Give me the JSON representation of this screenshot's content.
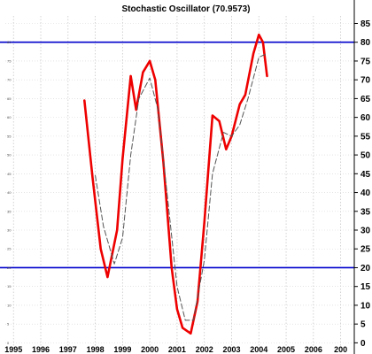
{
  "chart_data": {
    "type": "line",
    "title": "Stochastic Oscillator (70.9573)",
    "x_tick_labels": [
      "1995",
      "1996",
      "1997",
      "1998",
      "1999",
      "2000",
      "2001",
      "2002",
      "2003",
      "2004",
      "2005",
      "2006",
      "200"
    ],
    "y_tick_labels_right": [
      "85",
      "80",
      "75",
      "70",
      "65",
      "60",
      "55",
      "50",
      "45",
      "40",
      "35",
      "30",
      "25",
      "20",
      "15",
      "10",
      "5",
      "0"
    ],
    "y_tick_labels_left": [
      "80",
      "75",
      "70",
      "65",
      "60",
      "55",
      "50",
      "45",
      "40",
      "35",
      "30",
      "25",
      "20",
      "15",
      "10",
      "5",
      "0"
    ],
    "ylim": [
      -2.5,
      87
    ],
    "xlim": [
      1994.7,
      2007.5
    ],
    "grid": true,
    "horizontal_levels": [
      {
        "value": 80,
        "color": "#0000cc"
      },
      {
        "value": 20,
        "color": "#0000cc"
      }
    ],
    "series": [
      {
        "style": "solid",
        "color": "#ee0000",
        "x": [
          1997.6,
          1997.9,
          1998.2,
          1998.45,
          1998.8,
          1999.0,
          1999.3,
          1999.5,
          1999.75,
          2000.0,
          2000.2,
          2000.5,
          2000.8,
          2001.0,
          2001.2,
          2001.5,
          2001.75,
          2002.0,
          2002.3,
          2002.55,
          2002.8,
          2003.0,
          2003.3,
          2003.5,
          2003.8,
          2004.0,
          2004.15,
          2004.3
        ],
        "y": [
          64.5,
          44,
          25,
          17.5,
          30,
          49,
          71,
          62,
          72,
          75,
          70,
          48,
          20,
          9,
          4,
          2.5,
          11,
          32,
          60.5,
          59,
          51.5,
          55,
          63.5,
          66,
          77,
          82,
          80,
          71
        ]
      },
      {
        "style": "dashed",
        "color": "#555555",
        "x": [
          1998.0,
          1998.3,
          1998.7,
          1999.0,
          1999.3,
          1999.6,
          2000.0,
          2000.3,
          2000.6,
          2001.0,
          2001.3,
          2001.6,
          2002.0,
          2002.3,
          2002.7,
          2003.0,
          2003.3,
          2003.6,
          2004.0,
          2004.3
        ],
        "y": [
          44.5,
          31,
          21,
          28,
          50,
          65,
          70.5,
          62,
          42,
          15,
          6,
          6,
          22,
          45,
          56,
          55,
          58,
          65,
          76,
          77
        ]
      }
    ]
  }
}
